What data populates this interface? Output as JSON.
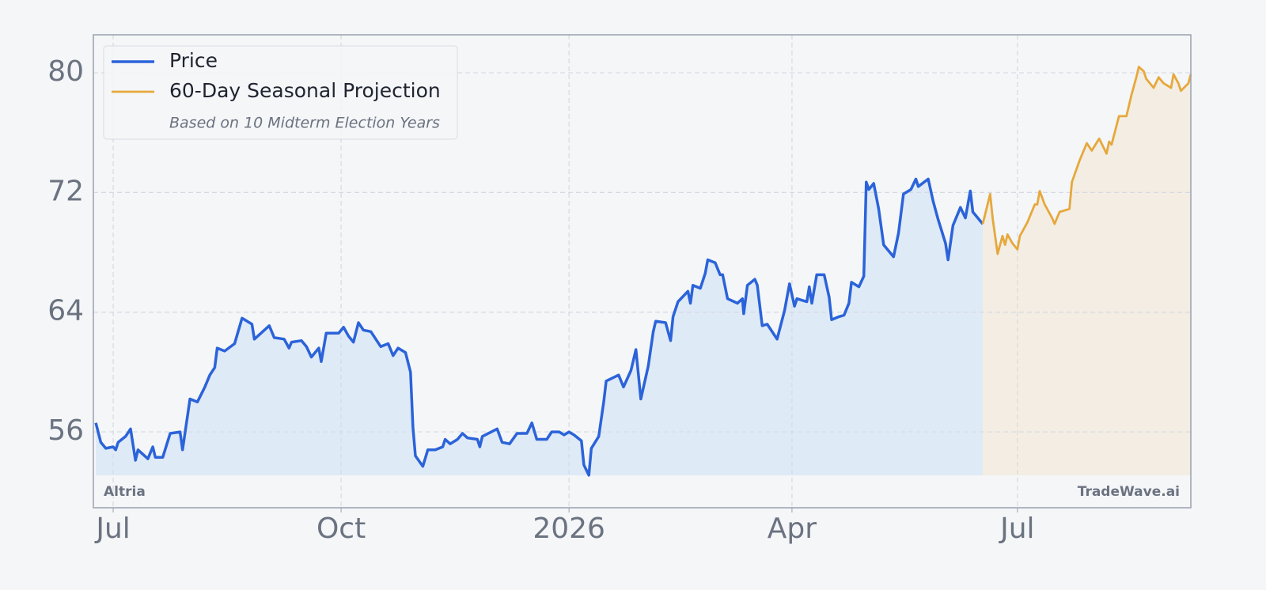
{
  "chart_data": {
    "type": "line",
    "watermark_left": "Altria",
    "watermark_right": "TradeWave.ai",
    "legend_note": "Based on 10 Midterm Election Years",
    "legend": "upper left",
    "grid": true,
    "xlim": [
      -8,
      435
    ],
    "ylim": [
      50.93,
      82.54
    ],
    "xticks": [
      {
        "value": 0,
        "label": "Jul"
      },
      {
        "value": 92,
        "label": "Oct"
      },
      {
        "value": 184,
        "label": "2026"
      },
      {
        "value": 274,
        "label": "Apr"
      },
      {
        "value": 365,
        "label": "Jul"
      }
    ],
    "yticks": [
      56,
      64,
      72,
      80
    ],
    "series": [
      {
        "name": "Price",
        "color": "#2b63d9",
        "fill_color": "#dfeaf7",
        "x": [
          -7,
          -5,
          -3,
          0,
          1,
          2,
          5,
          7,
          9,
          10,
          14,
          16,
          17,
          20,
          23,
          27,
          28,
          31,
          34,
          37,
          39,
          41,
          42,
          45,
          49,
          52,
          56,
          57,
          63,
          65,
          69,
          71,
          72,
          76,
          78,
          80,
          83,
          84,
          86,
          91,
          93,
          95,
          97,
          99,
          101,
          104,
          108,
          111,
          113,
          115,
          118,
          120,
          121,
          122,
          125,
          127,
          130,
          133,
          134,
          136,
          139,
          141,
          143,
          147,
          148,
          149,
          155,
          157,
          160,
          163,
          167,
          169,
          171,
          175,
          177,
          180,
          182,
          184,
          186,
          189,
          190,
          192,
          193,
          196,
          198,
          199,
          204,
          206,
          209,
          211,
          213,
          216,
          218,
          219,
          223,
          225,
          226,
          228,
          232,
          233,
          234,
          237,
          239,
          240,
          243,
          245,
          246,
          248,
          252,
          254,
          254.5,
          256,
          259,
          260,
          262,
          264,
          268,
          271,
          273,
          275,
          276,
          280,
          281,
          282,
          284,
          287,
          289,
          290,
          293,
          295,
          297,
          298,
          301,
          303,
          304,
          305,
          307,
          309,
          311,
          315,
          317,
          319,
          322,
          324,
          325,
          329,
          331,
          333,
          336,
          337,
          339,
          342,
          344,
          346,
          347,
          351
        ],
        "values": [
          56.6,
          55.3,
          54.9,
          55.0,
          54.8,
          55.3,
          55.7,
          56.2,
          54.1,
          54.8,
          54.2,
          55.0,
          54.3,
          54.3,
          55.9,
          56.0,
          54.8,
          58.2,
          58.0,
          59.0,
          59.8,
          60.3,
          61.6,
          61.4,
          61.9,
          63.6,
          63.2,
          62.2,
          63.1,
          62.3,
          62.2,
          61.6,
          62.0,
          62.1,
          61.7,
          61.0,
          61.6,
          60.7,
          62.6,
          62.6,
          63.0,
          62.4,
          62.0,
          63.3,
          62.8,
          62.7,
          61.7,
          61.9,
          61.1,
          61.6,
          61.3,
          60.0,
          56.3,
          54.4,
          53.7,
          54.8,
          54.8,
          55.0,
          55.5,
          55.2,
          55.5,
          55.9,
          55.6,
          55.5,
          55.0,
          55.7,
          56.2,
          55.3,
          55.2,
          55.9,
          55.9,
          56.6,
          55.5,
          55.5,
          56.0,
          56.0,
          55.8,
          56.0,
          55.8,
          55.4,
          53.8,
          53.1,
          54.9,
          55.7,
          58.0,
          59.4,
          59.8,
          59.0,
          60.1,
          61.5,
          58.2,
          60.4,
          62.7,
          63.4,
          63.3,
          62.1,
          63.7,
          64.7,
          65.4,
          64.6,
          65.8,
          65.6,
          66.6,
          67.5,
          67.3,
          66.5,
          66.5,
          64.9,
          64.6,
          64.9,
          63.9,
          65.8,
          66.2,
          65.8,
          63.1,
          63.2,
          62.2,
          64.1,
          65.9,
          64.4,
          64.9,
          64.7,
          65.7,
          64.6,
          66.5,
          66.5,
          65.0,
          63.5,
          63.7,
          63.8,
          64.6,
          66.0,
          65.7,
          66.4,
          72.7,
          72.2,
          72.6,
          70.9,
          68.5,
          67.7,
          69.3,
          71.9,
          72.2,
          72.9,
          72.4,
          72.9,
          71.4,
          70.2,
          68.6,
          67.5,
          69.8,
          71.0,
          70.3,
          72.1,
          70.7,
          69.9
        ]
      },
      {
        "name": "60-Day Seasonal Projection",
        "color": "#e6a83c",
        "fill_color": "#f3ede3",
        "x": [
          351,
          354,
          355,
          357,
          359,
          360,
          361,
          363,
          365,
          366,
          369,
          372,
          373,
          374,
          376,
          379,
          380,
          382,
          386,
          387,
          390,
          393,
          395,
          398,
          401,
          402,
          403,
          406,
          409,
          411,
          413,
          414,
          416,
          417,
          420,
          422,
          424,
          427,
          428,
          430,
          431,
          434,
          435
        ],
        "values": [
          69.9,
          71.9,
          70.3,
          67.9,
          69.1,
          68.5,
          69.2,
          68.6,
          68.2,
          69.1,
          70.0,
          71.2,
          71.2,
          72.1,
          71.2,
          70.3,
          69.9,
          70.7,
          70.9,
          72.7,
          74.1,
          75.3,
          74.8,
          75.6,
          74.6,
          75.4,
          75.2,
          77.1,
          77.1,
          78.5,
          79.7,
          80.4,
          80.1,
          79.6,
          79.0,
          79.7,
          79.3,
          79.0,
          79.9,
          79.3,
          78.8,
          79.3,
          79.9
        ]
      }
    ]
  }
}
